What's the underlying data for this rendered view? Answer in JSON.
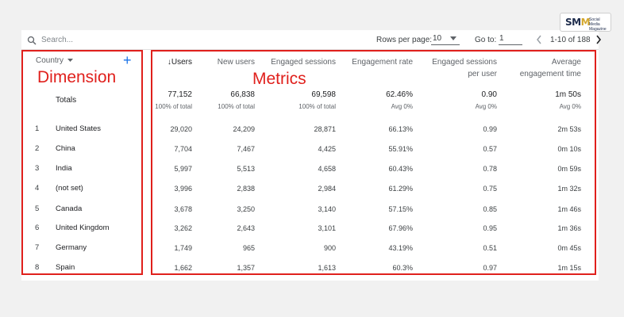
{
  "logo": {
    "brand_prefix": "SM",
    "brand_suffix": "M",
    "tagline": "Social Media Magazine"
  },
  "toolbar": {
    "search_placeholder": "Search...",
    "rows_per_page_label": "Rows per page:",
    "rows_per_page_value": "10",
    "goto_label": "Go to:",
    "goto_value": "1",
    "pagination_text": "1-10 of 188"
  },
  "annotations": {
    "dimension": "Dimension",
    "metrics": "Metrics"
  },
  "table": {
    "dimension_header": "Country",
    "totals_label": "Totals",
    "columns": [
      {
        "label": "Users",
        "sorted": true
      },
      {
        "label": "New users"
      },
      {
        "label": "Engaged sessions"
      },
      {
        "label": "Engagement rate"
      },
      {
        "label": "Engaged sessions per user"
      },
      {
        "label": "Average engagement time"
      }
    ],
    "totals": [
      "77,152",
      "66,838",
      "69,598",
      "62.46%",
      "0.90",
      "1m 50s"
    ],
    "totals_sub": [
      "100% of total",
      "100% of total",
      "100% of total",
      "Avg 0%",
      "Avg 0%",
      "Avg 0%"
    ],
    "rows": [
      {
        "idx": "1",
        "name": "United States",
        "values": [
          "29,020",
          "24,209",
          "28,871",
          "66.13%",
          "0.99",
          "2m 53s"
        ]
      },
      {
        "idx": "2",
        "name": "China",
        "values": [
          "7,704",
          "7,467",
          "4,425",
          "55.91%",
          "0.57",
          "0m 10s"
        ]
      },
      {
        "idx": "3",
        "name": "India",
        "values": [
          "5,997",
          "5,513",
          "4,658",
          "60.43%",
          "0.78",
          "0m 59s"
        ]
      },
      {
        "idx": "4",
        "name": "(not set)",
        "values": [
          "3,996",
          "2,838",
          "2,984",
          "61.29%",
          "0.75",
          "1m 32s"
        ]
      },
      {
        "idx": "5",
        "name": "Canada",
        "values": [
          "3,678",
          "3,250",
          "3,140",
          "57.15%",
          "0.85",
          "1m 46s"
        ]
      },
      {
        "idx": "6",
        "name": "United Kingdom",
        "values": [
          "3,262",
          "2,643",
          "3,101",
          "67.96%",
          "0.95",
          "1m 36s"
        ]
      },
      {
        "idx": "7",
        "name": "Germany",
        "values": [
          "1,749",
          "965",
          "900",
          "43.19%",
          "0.51",
          "0m 45s"
        ]
      },
      {
        "idx": "8",
        "name": "Spain",
        "values": [
          "1,662",
          "1,357",
          "1,613",
          "60.3%",
          "0.97",
          "1m 15s"
        ]
      }
    ]
  },
  "colors": {
    "annotation_red": "#e0201c",
    "accent_blue": "#1a73e8"
  }
}
